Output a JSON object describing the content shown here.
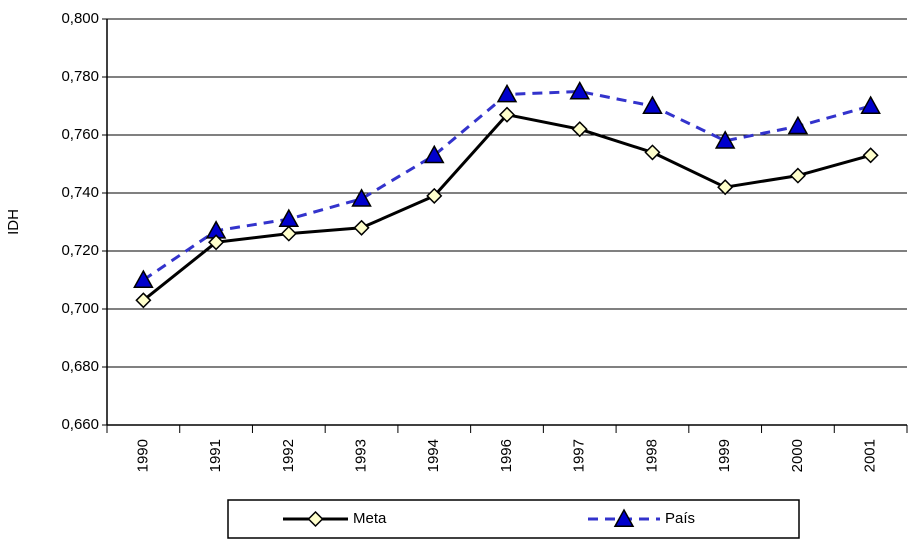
{
  "chart_data": {
    "type": "line",
    "ylabel": "IDH",
    "categories": [
      "1990",
      "1991",
      "1992",
      "1993",
      "1994",
      "1996",
      "1997",
      "1998",
      "1999",
      "2000",
      "2001"
    ],
    "series": [
      {
        "name": "Meta",
        "color": "#000000",
        "values": [
          0.703,
          0.723,
          0.726,
          0.728,
          0.739,
          0.767,
          0.762,
          0.754,
          0.742,
          0.746,
          0.753
        ]
      },
      {
        "name": "País",
        "color": "#3333cc",
        "values": [
          0.71,
          0.727,
          0.731,
          0.738,
          0.753,
          0.774,
          0.775,
          0.77,
          0.758,
          0.763,
          0.77
        ]
      }
    ],
    "ylim": [
      0.66,
      0.8
    ],
    "yticks": [
      {
        "value": 0.66,
        "label": "0,660"
      },
      {
        "value": 0.68,
        "label": "0,680"
      },
      {
        "value": 0.7,
        "label": "0,700"
      },
      {
        "value": 0.72,
        "label": "0,720"
      },
      {
        "value": 0.74,
        "label": "0,740"
      },
      {
        "value": 0.76,
        "label": "0,760"
      },
      {
        "value": 0.78,
        "label": "0,780"
      },
      {
        "value": 0.8,
        "label": "0,800"
      }
    ],
    "grid": true,
    "legend": "bottom"
  }
}
